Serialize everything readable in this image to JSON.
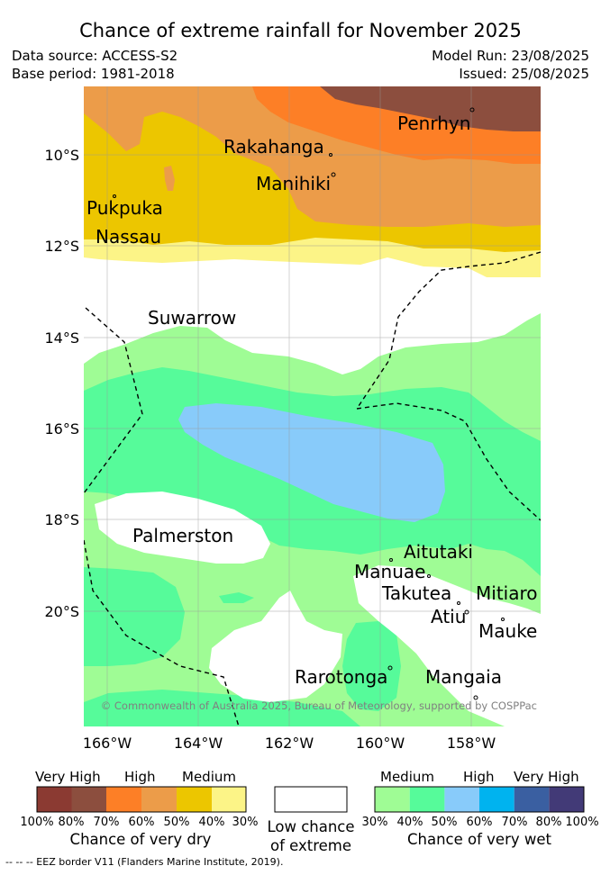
{
  "title": "Chance of extreme rainfall for November 2025",
  "meta": {
    "data_source": "Data source: ACCESS-S2",
    "base_period": "Base period: 1981-2018",
    "model_run": "Model Run: 23/08/2025",
    "issued": "Issued: 25/08/2025"
  },
  "map": {
    "lat_labels": [
      "10°S",
      "12°S",
      "14°S",
      "16°S",
      "18°S",
      "20°S"
    ],
    "lon_labels": [
      "166°W",
      "164°W",
      "162°W",
      "160°W",
      "158°W"
    ],
    "places": [
      "Penrhyn",
      "Rakahanga",
      "Manihiki",
      "Pukpuka",
      "Nassau",
      "Suwarrow",
      "Palmerston",
      "Aitutaki",
      "Manuae",
      "Takutea",
      "Mitiaro",
      "Atiu",
      "Mauke",
      "Rarotonga",
      "Mangaia"
    ],
    "copyright": "© Commonwealth of Australia 2025, Bureau of Meteorology, supported by COSPPac"
  },
  "colors": {
    "dry_100_80": "#8b3a32",
    "dry_80_70": "#8c4e3e",
    "dry_70_60": "#fd7f26",
    "dry_60_50": "#ec9c49",
    "dry_50_40": "#ecc600",
    "dry_40_30": "#fcf487",
    "wet_30_40": "#9ffc95",
    "wet_40_50": "#56fb9a",
    "wet_50_60": "#88cbfa",
    "wet_60_70": "#00b3ef",
    "wet_70_80": "#3a5fa1",
    "wet_80_100": "#423a77"
  },
  "legend": {
    "dry": {
      "headers": [
        "Very High",
        "High",
        "Medium"
      ],
      "ticks": [
        "100%",
        "80%",
        "70%",
        "60%",
        "50%",
        "40%",
        "30%"
      ],
      "caption": "Chance of very dry"
    },
    "neutral": {
      "caption_line1": "Low chance",
      "caption_line2": "of extreme"
    },
    "wet": {
      "headers": [
        "Medium",
        "High",
        "Very High"
      ],
      "ticks": [
        "30%",
        "40%",
        "50%",
        "60%",
        "70%",
        "80%",
        "100%"
      ],
      "caption": "Chance of very wet"
    },
    "eez_note": "--  --  -- EEZ border V11 (Flanders Marine Institute, 2019)."
  }
}
